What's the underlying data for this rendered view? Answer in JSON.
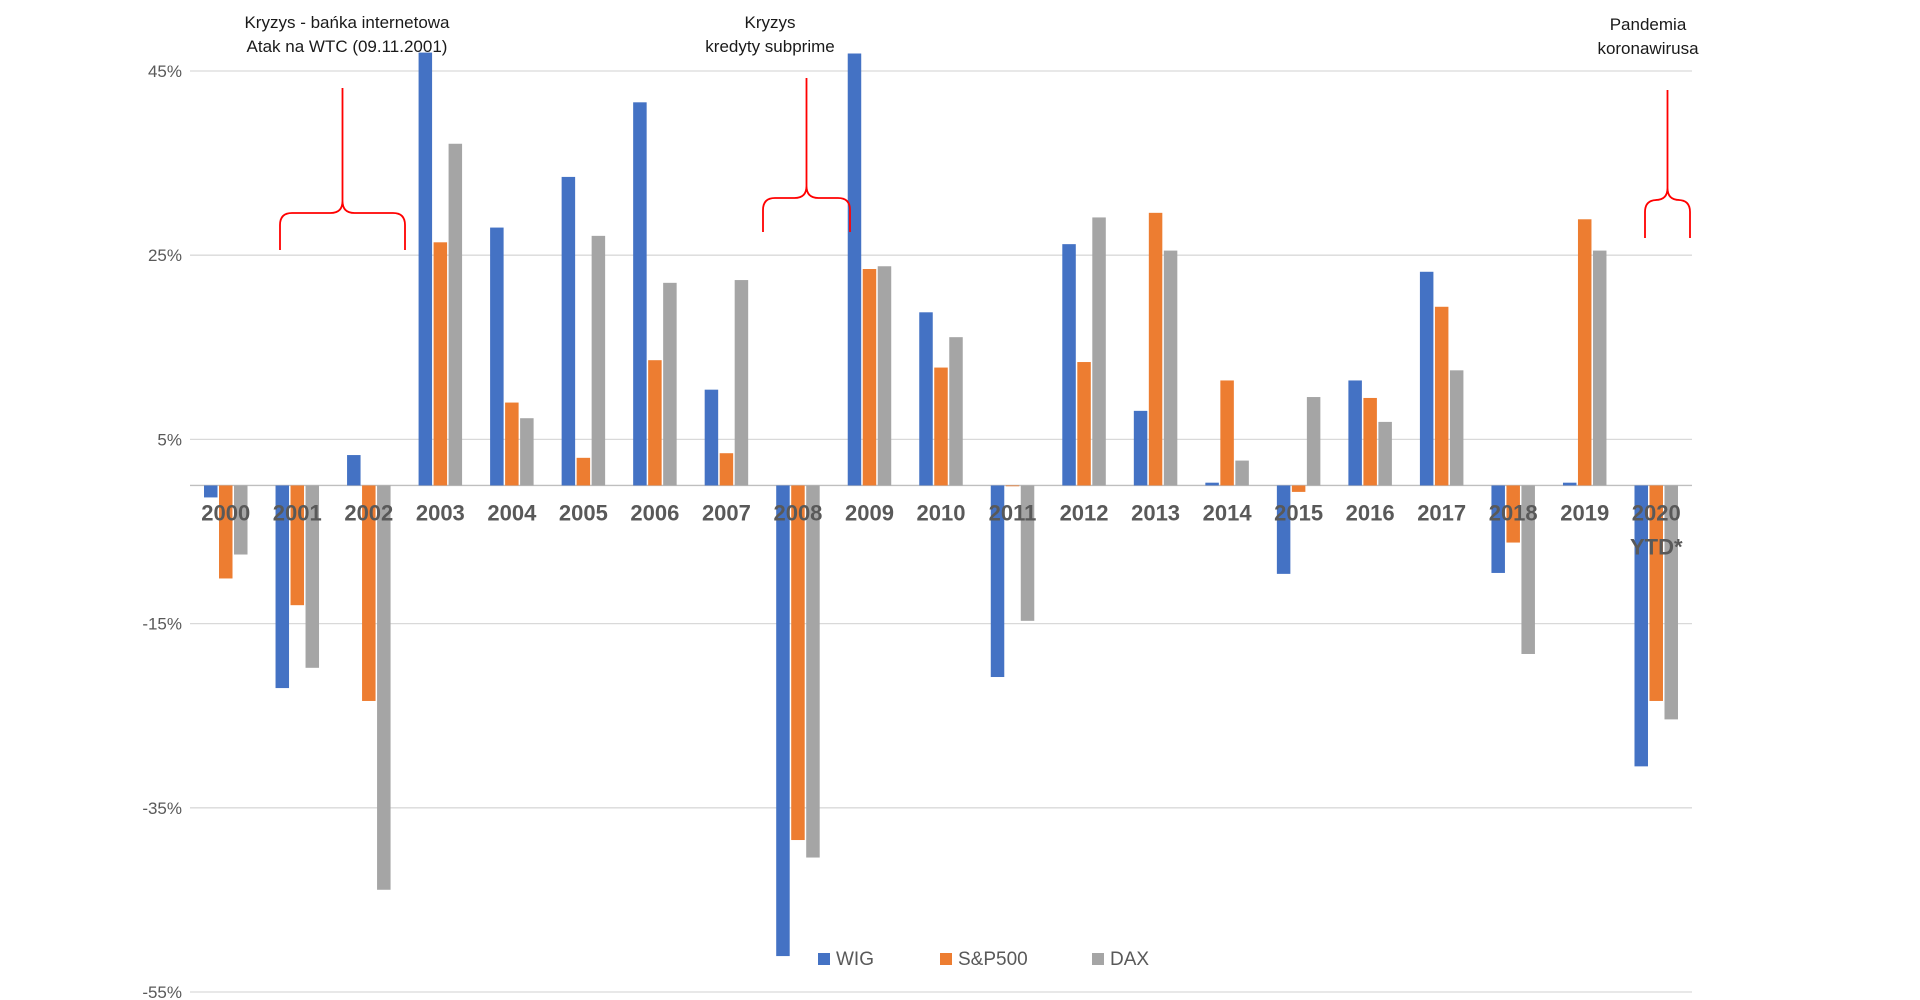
{
  "chart_data": {
    "type": "bar",
    "categories": [
      "2000",
      "2001",
      "2002",
      "2003",
      "2004",
      "2005",
      "2006",
      "2007",
      "2008",
      "2009",
      "2010",
      "2011",
      "2012",
      "2013",
      "2014",
      "2015",
      "2016",
      "2017",
      "2018",
      "2019",
      "2020"
    ],
    "category_sublabels": {
      "20": "YTD*"
    },
    "series": [
      {
        "name": "WIG",
        "color": "#4472c4",
        "values": [
          -1.3,
          -22.0,
          3.3,
          47.0,
          28.0,
          33.5,
          41.6,
          10.4,
          -51.1,
          46.9,
          18.8,
          -20.8,
          26.2,
          8.1,
          0.3,
          -9.6,
          11.4,
          23.2,
          -9.5,
          0.3,
          -30.5
        ]
      },
      {
        "name": "S&P500",
        "color": "#ed7d31",
        "values": [
          -10.1,
          -13.0,
          -23.4,
          26.4,
          9.0,
          3.0,
          13.6,
          3.5,
          -38.5,
          23.5,
          12.8,
          0.0,
          13.4,
          29.6,
          11.4,
          -0.7,
          9.5,
          19.4,
          -6.2,
          28.9,
          -23.4
        ]
      },
      {
        "name": "DAX",
        "color": "#a5a5a5",
        "values": [
          -7.5,
          -19.8,
          -43.9,
          37.1,
          7.3,
          27.1,
          22.0,
          22.3,
          -40.4,
          23.8,
          16.1,
          -14.7,
          29.1,
          25.5,
          2.7,
          9.6,
          6.9,
          12.5,
          -18.3,
          25.5,
          -25.4
        ]
      }
    ],
    "y_ticks": [
      "45%",
      "25%",
      "5%",
      "-15%",
      "-35%",
      "-55%"
    ],
    "y_tick_values": [
      45,
      25,
      5,
      -15,
      -35,
      -55
    ],
    "ylim": [
      -55,
      45
    ],
    "grid": true,
    "legend_position": "bottom",
    "annotations": [
      {
        "lines": [
          "Kryzys - bańka internetowa",
          "Atak na WTC (09.11.2001)"
        ],
        "categories": [
          "2001",
          "2002"
        ],
        "color": "#ff0000"
      },
      {
        "lines": [
          "Kryzys",
          "kredyty subprime"
        ],
        "categories": [
          "2008"
        ],
        "color": "#ff0000"
      },
      {
        "lines": [
          "Pandemia",
          "koronawirusa"
        ],
        "categories": [
          "2020"
        ],
        "color": "#ff0000"
      }
    ],
    "title": "",
    "xlabel": "",
    "ylabel": ""
  }
}
